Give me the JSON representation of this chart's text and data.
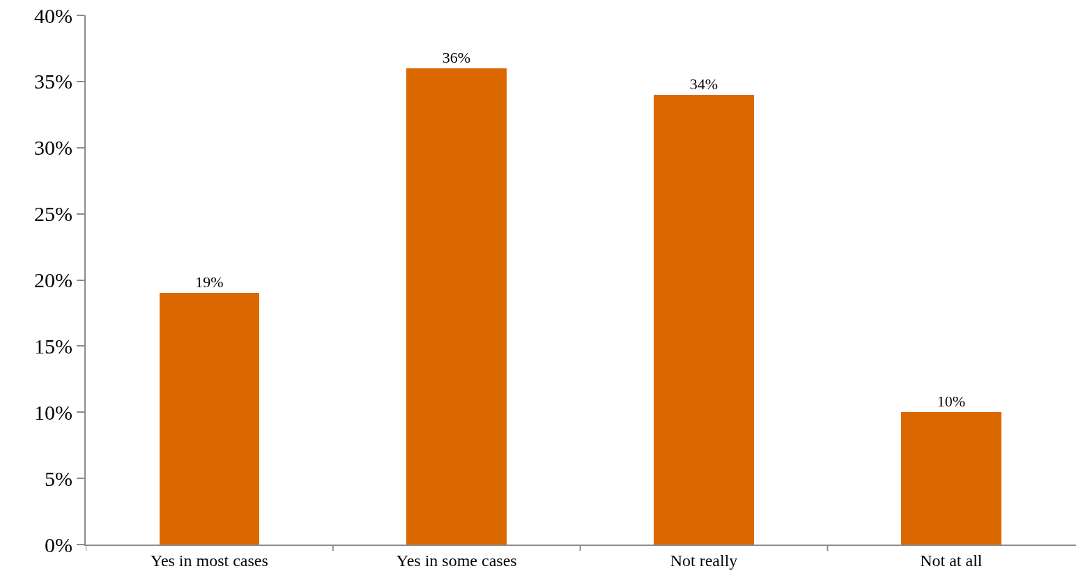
{
  "chart_data": {
    "type": "bar",
    "categories": [
      "Yes in most cases",
      "Yes in some cases",
      "Not really",
      "Not at all"
    ],
    "values": [
      19,
      36,
      34,
      10
    ],
    "value_labels": [
      "19%",
      "36%",
      "34%",
      "10%"
    ],
    "color": "#dc6900",
    "ylim": [
      0,
      40
    ],
    "yticks": [
      {
        "value": 0,
        "label": "0%"
      },
      {
        "value": 5,
        "label": "5%"
      },
      {
        "value": 10,
        "label": "10%"
      },
      {
        "value": 15,
        "label": "15%"
      },
      {
        "value": 20,
        "label": "20%"
      },
      {
        "value": 25,
        "label": "25%"
      },
      {
        "value": 30,
        "label": "30%"
      },
      {
        "value": 35,
        "label": "35%"
      },
      {
        "value": 40,
        "label": "40%"
      }
    ]
  }
}
